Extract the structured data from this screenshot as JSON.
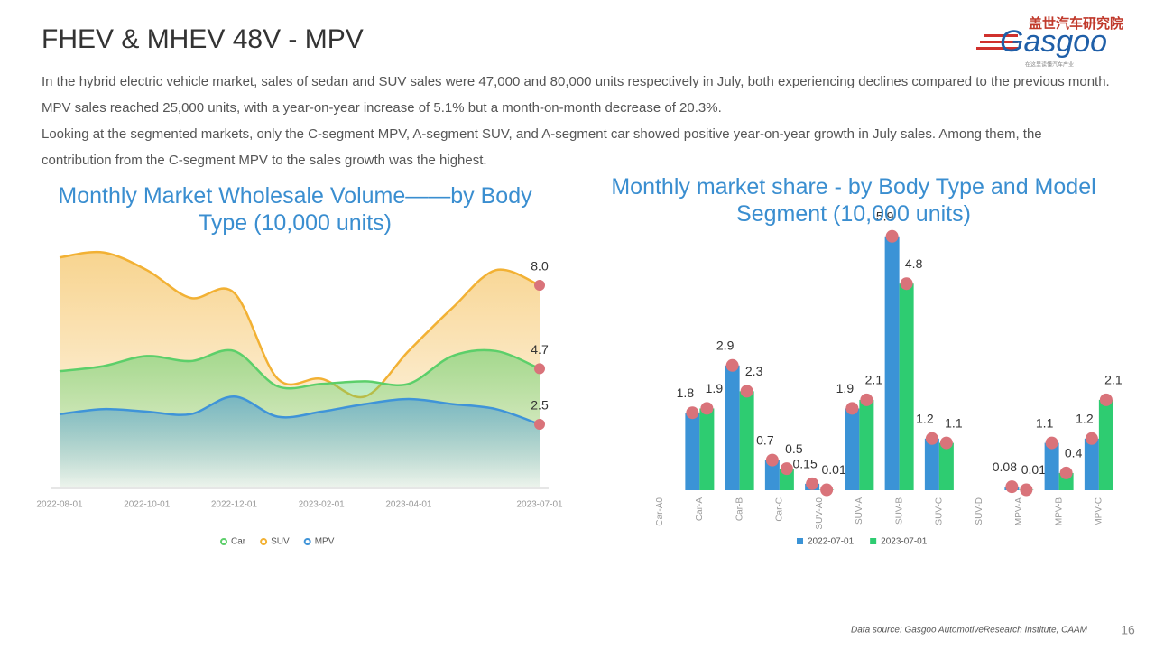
{
  "header": {
    "title": "FHEV & MHEV 48V -  MPV",
    "logo_name": "盖世汽车研究院",
    "logo_brand": "Gasgoo",
    "logo_tagline": "在这里读懂汽车产业"
  },
  "paragraphs": [
    "In the hybrid electric vehicle market, sales of sedan and SUV sales were 47,000 and 80,000 units respectively in July, both experiencing declines compared to the previous month. MPV sales reached 25,000 units, with a year-on-year increase of 5.1% but a month-on-month decrease of 20.3%.",
    "Looking at the segmented markets, only the C-segment MPV, A-segment SUV, and A-segment car showed positive year-on-year growth in July sales. Among them, the contribution from the C-segment MPV to the sales growth was the highest."
  ],
  "chart_data": [
    {
      "type": "area",
      "title": "Monthly Market Wholesale Volume——by Body Type (10,000 units)",
      "x": [
        "2022-08-01",
        "2022-09-01",
        "2022-10-01",
        "2022-11-01",
        "2022-12-01",
        "2023-01-01",
        "2023-02-01",
        "2023-03-01",
        "2023-04-01",
        "2023-05-01",
        "2023-06-01",
        "2023-07-01"
      ],
      "xticks": [
        "2022-08-01",
        "2022-10-01",
        "2022-12-01",
        "2023-02-01",
        "2023-04-01",
        "2023-07-01"
      ],
      "ylim": [
        0,
        10
      ],
      "legend": "bottom",
      "series": [
        {
          "name": "Car",
          "color": "#5ccf6a",
          "values": [
            4.6,
            4.8,
            5.2,
            5.0,
            5.4,
            4.0,
            4.1,
            4.2,
            4.1,
            5.2,
            5.4,
            4.7
          ],
          "value_labels": [
            null,
            null,
            null,
            null,
            null,
            null,
            null,
            null,
            null,
            null,
            null,
            "4.7"
          ]
        },
        {
          "name": "SUV",
          "color": "#f2b134",
          "values": [
            9.1,
            9.3,
            8.6,
            7.5,
            7.7,
            4.3,
            4.3,
            3.6,
            5.4,
            7.1,
            8.6,
            8.0
          ],
          "value_labels": [
            null,
            null,
            null,
            null,
            null,
            null,
            null,
            null,
            null,
            null,
            null,
            "8.0"
          ]
        },
        {
          "name": "MPV",
          "color": "#3f94d8",
          "values": [
            2.9,
            3.1,
            3.0,
            2.9,
            3.6,
            2.8,
            3.0,
            3.3,
            3.5,
            3.3,
            3.1,
            2.5
          ],
          "value_labels": [
            null,
            null,
            null,
            null,
            null,
            null,
            null,
            null,
            null,
            null,
            null,
            "2.5"
          ]
        }
      ]
    },
    {
      "type": "bar",
      "title": "Monthly market share - by Body Type and Model Segment (10,000 units)",
      "categories": [
        "Car-A0",
        "Car-A",
        "Car-B",
        "Car-C",
        "SUV-A0",
        "SUV-A",
        "SUV-B",
        "SUV-C",
        "SUV-D",
        "MPV-A",
        "MPV-B",
        "MPV-C"
      ],
      "ylim": [
        0,
        6
      ],
      "legend": "bottom",
      "marker_color": "#d9737a",
      "series": [
        {
          "name": "2022-07-01",
          "color": "#3b93d6",
          "values": [
            null,
            1.8,
            2.9,
            0.7,
            0.15,
            1.9,
            5.9,
            1.2,
            null,
            0.08,
            1.1,
            1.2
          ]
        },
        {
          "name": "2023-07-01",
          "color": "#2ecc71",
          "values": [
            null,
            1.9,
            2.3,
            0.5,
            0.01,
            2.1,
            4.8,
            1.1,
            null,
            0.01,
            0.4,
            2.1
          ]
        }
      ]
    }
  ],
  "footer": {
    "source": "Data source: Gasgoo AutomotiveResearch Institute, CAAM",
    "page": "16"
  }
}
